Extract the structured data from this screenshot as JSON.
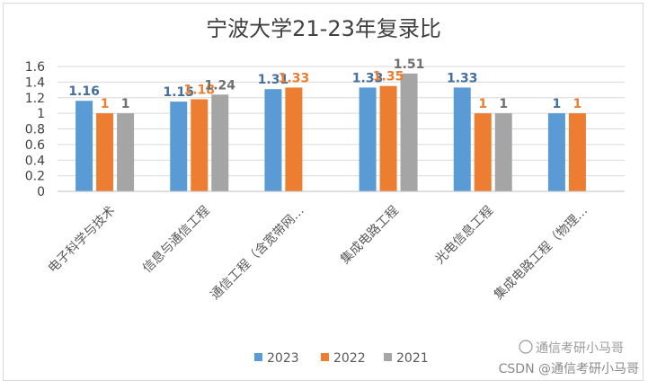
{
  "chart_data": {
    "type": "bar",
    "title": "宁波大学21-23年复录比",
    "categories": [
      "电子科学与技术",
      "信息与通信工程",
      "通信工程（含宽带网…",
      "集成电路工程",
      "光电信息工程",
      "集成电路工程（物理…"
    ],
    "series": [
      {
        "name": "2023",
        "color": "#5b9bd5",
        "label_color": "#44709d",
        "values": [
          1.16,
          1.15,
          1.31,
          1.33,
          1.33,
          1
        ]
      },
      {
        "name": "2022",
        "color": "#ed7d31",
        "label_color": "#ed7d31",
        "values": [
          1,
          1.18,
          1.33,
          1.35,
          1,
          1
        ]
      },
      {
        "name": "2021",
        "color": "#a5a5a5",
        "label_color": "#6f6f6f",
        "values": [
          1,
          1.24,
          null,
          1.51,
          1,
          null
        ]
      }
    ],
    "data_labels": [
      [
        "1.16",
        "1.15",
        "1.31",
        "1.33",
        "1.33",
        "1"
      ],
      [
        "1",
        "1.18",
        "1.33",
        "1.35",
        "1",
        "1"
      ],
      [
        "1",
        "1.24",
        "",
        "1.51",
        "1",
        ""
      ]
    ],
    "yticks": [
      "0",
      "0.2",
      "0.4",
      "0.6",
      "0.8",
      "1",
      "1.2",
      "1.4",
      "1.6"
    ],
    "ylim": [
      0,
      1.6
    ],
    "grid": true,
    "legend_position": "bottom"
  },
  "watermark": {
    "brand": "通信考研小马哥",
    "credit": "CSDN @通信考研小马哥"
  }
}
